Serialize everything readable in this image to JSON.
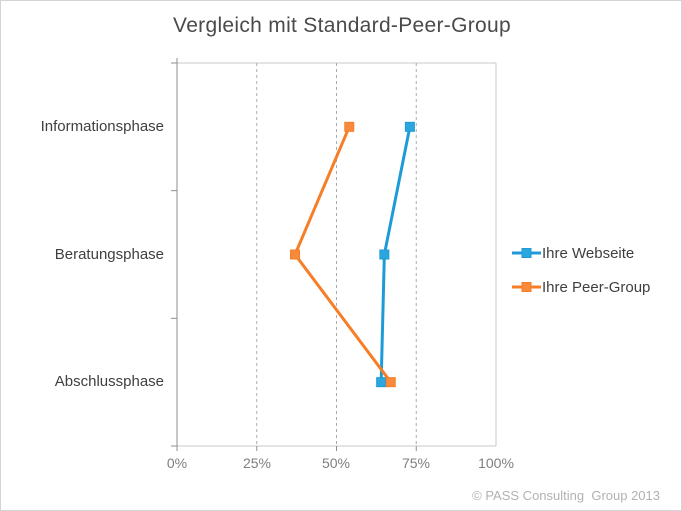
{
  "title": "Vergleich mit Standard-Peer-Group",
  "footer": "© PASS Consulting  Group 2013",
  "chart_data": {
    "type": "line",
    "orientation": "horizontal",
    "title": "Vergleich mit Standard-Peer-Group",
    "categories": [
      "Informationsphase",
      "Beratungsphase",
      "Abschlussphase"
    ],
    "series": [
      {
        "name": "Ihre Webseite",
        "color": "#1e9bd7",
        "marker_fill": "#2ba6df",
        "values": [
          73,
          65,
          64
        ]
      },
      {
        "name": "Ihre Peer-Group",
        "color": "#f57e26",
        "marker_fill": "#f78b3b",
        "values": [
          54,
          37,
          67
        ]
      }
    ],
    "value_unit": "%",
    "xlim": [
      0,
      100
    ],
    "x_ticks": [
      0,
      25,
      50,
      75,
      100
    ],
    "x_tick_labels": [
      "0%",
      "25%",
      "50%",
      "75%",
      "100%"
    ],
    "grid": "dashed-vertical",
    "legend_position": "right",
    "marker": "square"
  },
  "colors": {
    "axis": "#8f8f8f",
    "plot_border": "#c9c9c9",
    "gridline": "#ababab",
    "title_text": "#4a4a4a",
    "label_text": "#3f3f3f",
    "tick_text": "#7f7f7f",
    "footer_text": "#b2b2b2"
  }
}
